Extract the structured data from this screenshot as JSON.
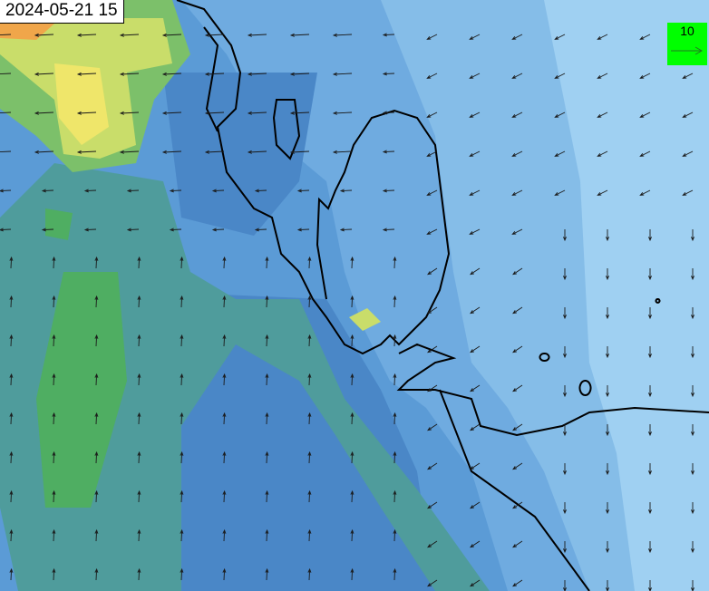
{
  "timestamp": "2024-05-21 15",
  "legend": {
    "reference_label": "10",
    "reference_arrow": "right-arrow",
    "background_color": "#00ff00"
  },
  "colors": {
    "deep_blue": "#4a87c7",
    "mid_blue": "#5b9bd6",
    "light_blue": "#7fb8e6",
    "pale_blue": "#9fd0f2",
    "teal": "#4f9c9c",
    "green": "#4fae62",
    "yellow": "#efe66a",
    "orange": "#f0a64a",
    "coastline": "#000000"
  }
}
